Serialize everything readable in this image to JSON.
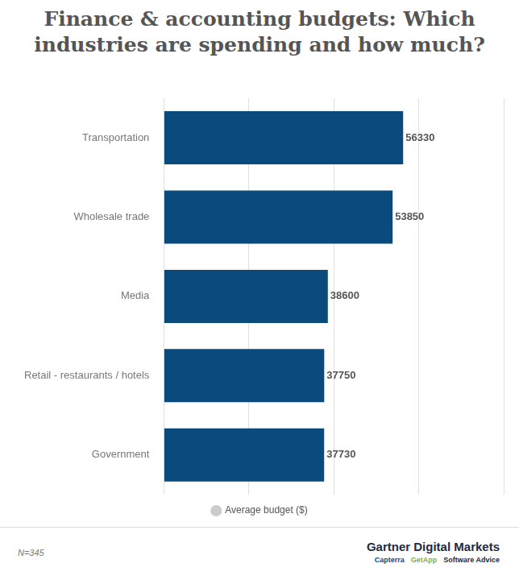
{
  "chart_data": {
    "type": "bar",
    "orientation": "horizontal",
    "title": "Finance & accounting budgets: Which industries are spending and how much?",
    "categories": [
      "Transportation",
      "Wholesale trade",
      "Media",
      "Retail - restaurants / hotels",
      "Government"
    ],
    "series": [
      {
        "name": "Average budget ($)",
        "color": "#0b4a7d",
        "values": [
          56330,
          53850,
          38600,
          37750,
          37730
        ]
      }
    ],
    "xlim": [
      0,
      80000
    ],
    "xticks": [
      0,
      20000,
      40000,
      60000,
      80000
    ],
    "grid": true,
    "tick_labels": "y",
    "data_labels": true,
    "legend": "bottom",
    "note": "N=345",
    "source": "Gartner Digital Markets",
    "source_brands": [
      "Capterra",
      "GetApp",
      "Software Advice"
    ]
  }
}
